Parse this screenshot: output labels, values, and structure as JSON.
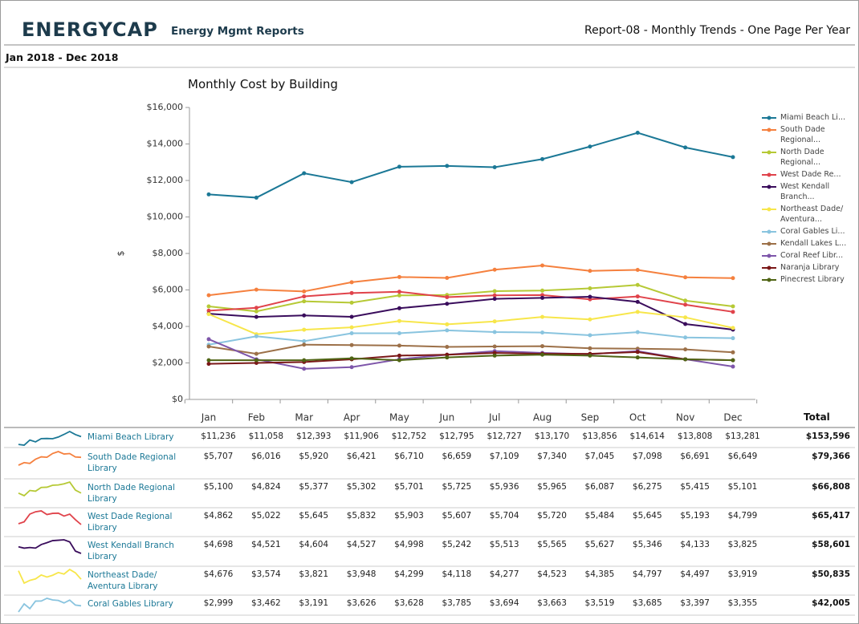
{
  "header": {
    "logo": "ENERGYCAP",
    "app_title": "Energy Mgmt Reports",
    "report_title": "Report-08 - Monthly Trends - One Page Per Year",
    "period": "Jan 2018 - Dec 2018"
  },
  "chart_data": {
    "type": "line",
    "title": "Monthly Cost by Building",
    "y_label": "$",
    "categories": [
      "Jan",
      "Feb",
      "Mar",
      "Apr",
      "May",
      "Jun",
      "Jul",
      "Aug",
      "Sep",
      "Oct",
      "Nov",
      "Dec"
    ],
    "ylim": [
      0,
      16000
    ],
    "yticks": [
      {
        "value": 0,
        "label": "$0"
      },
      {
        "value": 2000,
        "label": "$2,000"
      },
      {
        "value": 4000,
        "label": "$4,000"
      },
      {
        "value": 6000,
        "label": "$6,000"
      },
      {
        "value": 8000,
        "label": "$8,000"
      },
      {
        "value": 10000,
        "label": "$10,000"
      },
      {
        "value": 12000,
        "label": "$12,000"
      },
      {
        "value": 14000,
        "label": "$14,000"
      },
      {
        "value": 16000,
        "label": "$16,000"
      }
    ],
    "legend": "right",
    "series": [
      {
        "name": "Miami Beach Li...",
        "color": "#1b7896",
        "values": [
          11236,
          11058,
          12393,
          11906,
          12752,
          12795,
          12727,
          13170,
          13856,
          14614,
          13808,
          13281
        ],
        "value_labels": [
          "$11,236",
          "$11,058",
          "$12,393",
          "$11,906",
          "$12,752",
          "$12,795",
          "$12,727",
          "$13,170",
          "$13,856",
          "$14,614",
          "$13,808",
          "$13,281"
        ]
      },
      {
        "name": "South Dade Regional...",
        "color": "#f5803e",
        "values": [
          5707,
          6016,
          5920,
          6421,
          6710,
          6659,
          7109,
          7340,
          7045,
          7098,
          6691,
          6649
        ],
        "value_labels": [
          "$5,707",
          "$6,016",
          "$5,920",
          "$6,421",
          "$6,710",
          "$6,659",
          "$7,109",
          "$7,340",
          "$7,045",
          "$7,098",
          "$6,691",
          "$6,649"
        ]
      },
      {
        "name": "North Dade Regional...",
        "color": "#b6c935",
        "values": [
          5100,
          4824,
          5377,
          5302,
          5701,
          5725,
          5936,
          5965,
          6087,
          6275,
          5415,
          5101
        ],
        "value_labels": [
          "$5,100",
          "$4,824",
          "$5,377",
          "$5,302",
          "$5,701",
          "$5,725",
          "$5,936",
          "$5,965",
          "$6,087",
          "$6,275",
          "$5,415",
          "$5,101"
        ]
      },
      {
        "name": "West Dade Re...",
        "color": "#e0434b",
        "values": [
          4862,
          5022,
          5645,
          5832,
          5903,
          5607,
          5704,
          5720,
          5484,
          5645,
          5193,
          4799
        ],
        "value_labels": [
          "$4,862",
          "$5,022",
          "$5,645",
          "$5,832",
          "$5,903",
          "$5,607",
          "$5,704",
          "$5,720",
          "$5,484",
          "$5,645",
          "$5,193",
          "$4,799"
        ]
      },
      {
        "name": "West Kendall Branch...",
        "color": "#3a0d5c",
        "values": [
          4698,
          4521,
          4604,
          4527,
          4998,
          5242,
          5513,
          5565,
          5627,
          5346,
          4133,
          3825
        ],
        "value_labels": [
          "$4,698",
          "$4,521",
          "$4,604",
          "$4,527",
          "$4,998",
          "$5,242",
          "$5,513",
          "$5,565",
          "$5,627",
          "$5,346",
          "$4,133",
          "$3,825"
        ]
      },
      {
        "name": "Northeast Dade/ Aventura...",
        "color": "#f7e64a",
        "values": [
          4676,
          3574,
          3821,
          3948,
          4299,
          4118,
          4277,
          4523,
          4385,
          4797,
          4497,
          3919
        ],
        "value_labels": [
          "$4,676",
          "$3,574",
          "$3,821",
          "$3,948",
          "$4,299",
          "$4,118",
          "$4,277",
          "$4,523",
          "$4,385",
          "$4,797",
          "$4,497",
          "$3,919"
        ]
      },
      {
        "name": "Coral Gables Li...",
        "color": "#89c4df",
        "values": [
          2999,
          3462,
          3191,
          3626,
          3628,
          3785,
          3694,
          3663,
          3519,
          3685,
          3397,
          3355
        ],
        "value_labels": [
          "$2,999",
          "$3,462",
          "$3,191",
          "$3,626",
          "$3,628",
          "$3,785",
          "$3,694",
          "$3,663",
          "$3,519",
          "$3,685",
          "$3,397",
          "$3,355"
        ]
      },
      {
        "name": "Kendall Lakes L...",
        "color": "#9c7048",
        "values": [
          2900,
          2500,
          3000,
          2980,
          2950,
          2880,
          2900,
          2920,
          2800,
          2780,
          2740,
          2580
        ]
      },
      {
        "name": "Coral Reef Libr...",
        "color": "#7e56aa",
        "values": [
          3300,
          2200,
          1680,
          1770,
          2200,
          2450,
          2650,
          2550,
          2480,
          2650,
          2200,
          1800
        ]
      },
      {
        "name": "Naranja Library",
        "color": "#7a1717",
        "values": [
          1950,
          2000,
          2050,
          2200,
          2400,
          2450,
          2550,
          2500,
          2500,
          2600,
          2200,
          2150
        ]
      },
      {
        "name": "Pinecrest Library",
        "color": "#4f6414",
        "values": [
          2150,
          2150,
          2150,
          2250,
          2150,
          2300,
          2400,
          2450,
          2400,
          2300,
          2200,
          2150
        ]
      }
    ]
  },
  "table": {
    "total_header": "Total",
    "rows": [
      {
        "name": "Miami Beach Library",
        "total": "$153,596"
      },
      {
        "name": "South Dade Regional Library",
        "total": "$79,366"
      },
      {
        "name": "North Dade Regional Library",
        "total": "$66,808"
      },
      {
        "name": "West Dade Regional Library",
        "total": "$65,417"
      },
      {
        "name": "West Kendall Branch Library",
        "total": "$58,601"
      },
      {
        "name": "Northeast Dade/ Aventura Library",
        "total": "$50,835"
      },
      {
        "name": "Coral Gables Library",
        "total": "$42,005"
      }
    ]
  }
}
